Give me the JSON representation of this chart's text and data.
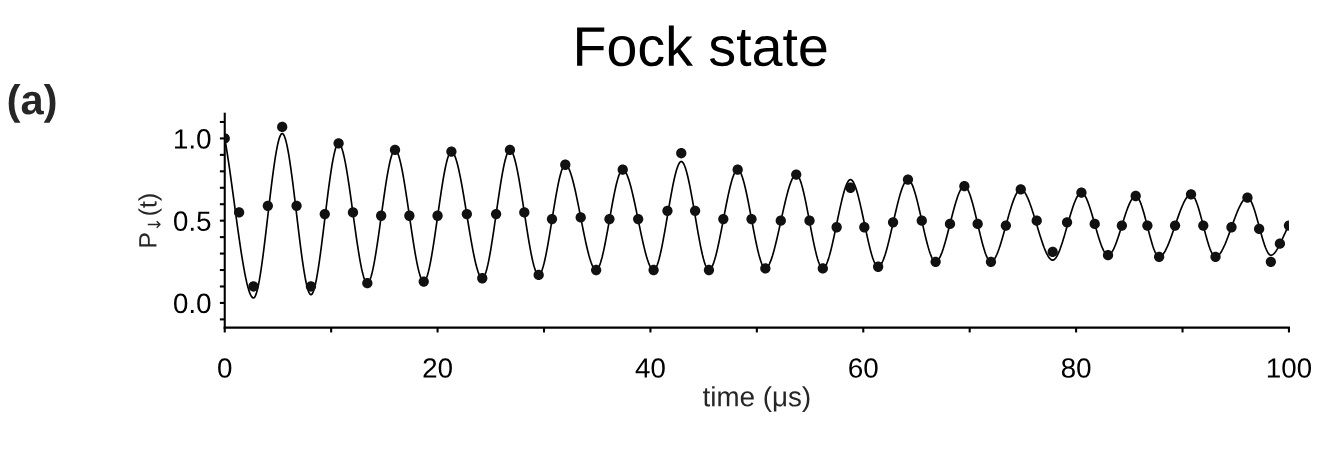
{
  "chart_data": {
    "type": "scatter",
    "title": "Fock state",
    "xlabel": "time (μs)",
    "ylabel": "P$_{↓}$(t)",
    "annotations": [
      "(a)"
    ],
    "xlim": [
      0,
      100
    ],
    "ylim": [
      -0.15,
      1.15
    ],
    "xticks": [
      0,
      {
        "value": 10,
        "label": null
      },
      20,
      {
        "value": 30,
        "label": null
      },
      40,
      {
        "value": 50,
        "label": null
      },
      60,
      {
        "value": 70,
        "label": null
      },
      80,
      {
        "value": 90,
        "label": null
      },
      100
    ],
    "yticks": [
      {
        "value": -0.1,
        "label": null
      },
      {
        "value": 0.0,
        "label": "0.0"
      },
      {
        "value": 0.1,
        "label": null
      },
      {
        "value": 0.2,
        "label": null
      },
      {
        "value": 0.3,
        "label": null
      },
      {
        "value": 0.4,
        "label": null
      },
      {
        "value": 0.5,
        "label": "0.5"
      },
      {
        "value": 0.6,
        "label": null
      },
      {
        "value": 0.7,
        "label": null
      },
      {
        "value": 0.8,
        "label": null
      },
      {
        "value": 0.9,
        "label": null
      },
      {
        "value": 1.0,
        "label": "1.0"
      },
      {
        "value": 1.1,
        "label": null
      }
    ],
    "grid": false,
    "legend": false,
    "series": [
      {
        "color": "#111111",
        "marker": "circle",
        "x": [
          0,
          1.35,
          2.7,
          4.05,
          5.4,
          6.75,
          8.1,
          9.4,
          10.7,
          12.05,
          13.4,
          14.7,
          16.0,
          17.35,
          18.7,
          20.0,
          21.3,
          22.75,
          24.2,
          25.5,
          26.8,
          28.15,
          29.5,
          30.75,
          32.0,
          33.45,
          34.9,
          36.15,
          37.4,
          38.85,
          40.3,
          41.6,
          42.9,
          44.2,
          45.5,
          46.85,
          48.2,
          49.5,
          50.8,
          52.25,
          53.7,
          54.95,
          56.2,
          57.5,
          58.8,
          60.1,
          61.4,
          62.8,
          64.2,
          65.5,
          66.8,
          68.15,
          69.5,
          70.75,
          72.0,
          73.4,
          74.8,
          76.3,
          77.8,
          79.15,
          80.5,
          81.75,
          83.0,
          84.3,
          85.6,
          86.7,
          87.8,
          89.3,
          90.8,
          91.95,
          93.1,
          94.6,
          96.1,
          97.2,
          98.3,
          99.15,
          100
        ],
        "values": [
          1.0,
          0.55,
          0.1,
          0.59,
          1.07,
          0.59,
          0.1,
          0.54,
          0.97,
          0.55,
          0.12,
          0.53,
          0.93,
          0.53,
          0.13,
          0.53,
          0.92,
          0.54,
          0.15,
          0.54,
          0.93,
          0.55,
          0.17,
          0.51,
          0.84,
          0.52,
          0.2,
          0.51,
          0.81,
          0.51,
          0.2,
          0.56,
          0.91,
          0.56,
          0.2,
          0.51,
          0.81,
          0.51,
          0.21,
          0.5,
          0.78,
          0.5,
          0.21,
          0.46,
          0.7,
          0.46,
          0.22,
          0.49,
          0.75,
          0.5,
          0.25,
          0.48,
          0.71,
          0.48,
          0.25,
          0.47,
          0.69,
          0.5,
          0.31,
          0.49,
          0.67,
          0.48,
          0.29,
          0.47,
          0.65,
          0.47,
          0.28,
          0.47,
          0.66,
          0.47,
          0.28,
          0.46,
          0.64,
          0.45,
          0.25,
          0.36,
          0.47
        ]
      },
      {
        "type": "line",
        "color": "#000000",
        "line_style": "solid",
        "x": [
          0,
          2.7,
          5.4,
          8.1,
          10.7,
          13.4,
          16.0,
          18.7,
          21.3,
          24.2,
          26.8,
          29.5,
          32.0,
          34.9,
          37.4,
          40.3,
          42.9,
          45.5,
          48.2,
          50.8,
          53.7,
          56.2,
          58.8,
          61.4,
          64.2,
          66.8,
          69.5,
          72.0,
          74.8,
          77.8,
          80.5,
          83.0,
          85.6,
          87.8,
          90.8,
          93.1,
          96.1,
          98.3,
          100
        ],
        "values": [
          1.0,
          0.03,
          1.03,
          0.05,
          0.97,
          0.12,
          0.93,
          0.13,
          0.92,
          0.15,
          0.93,
          0.17,
          0.84,
          0.2,
          0.81,
          0.2,
          0.86,
          0.2,
          0.81,
          0.21,
          0.78,
          0.21,
          0.75,
          0.22,
          0.75,
          0.25,
          0.71,
          0.25,
          0.69,
          0.26,
          0.67,
          0.29,
          0.65,
          0.28,
          0.66,
          0.28,
          0.64,
          0.29,
          0.47
        ]
      }
    ]
  }
}
